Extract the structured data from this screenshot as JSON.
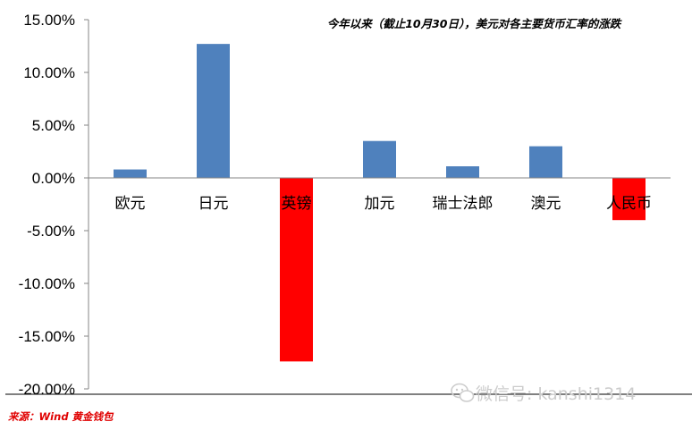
{
  "chart_data": {
    "type": "bar",
    "title": "今年以来（截止10月30日），美元对各主要货币汇率的涨跌",
    "categories": [
      "欧元",
      "日元",
      "英镑",
      "加元",
      "瑞士法郎",
      "澳元",
      "人民币"
    ],
    "values": [
      0.8,
      12.7,
      -17.4,
      3.5,
      1.1,
      3.0,
      -4.0
    ],
    "ylim": [
      -20,
      15
    ],
    "yticks": [
      "15.00%",
      "10.00%",
      "5.00%",
      "0.00%",
      "-5.00%",
      "-10.00%",
      "-15.00%",
      "-20.00%"
    ],
    "ytick_values": [
      15,
      10,
      5,
      0,
      -5,
      -10,
      -15,
      -20
    ],
    "xlabel": "",
    "ylabel": "",
    "grid": false,
    "colors": {
      "positive": "#4f81bd",
      "negative": "#ff0000"
    }
  },
  "source": "来源：Wind  黄金钱包",
  "watermark": {
    "icon": "wechat-icon",
    "text": "微信号: kanshi1314"
  }
}
